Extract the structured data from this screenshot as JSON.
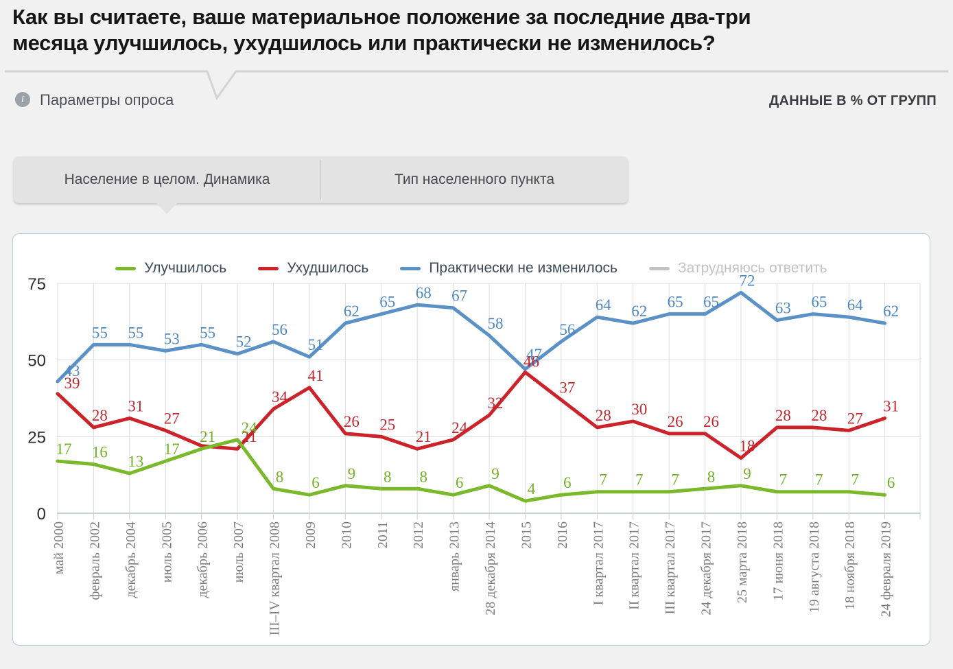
{
  "header": {
    "title_lines": [
      "Как вы считаете, ваше материальное положение за последние два-три",
      "месяца улучшилось, ухудшилось или практически не изменилось?"
    ],
    "info_icon": "i",
    "params_link": "Параметры опроса",
    "data_note": "ДАННЫЕ В % ОТ ГРУПП"
  },
  "tabs": [
    {
      "label": "Население в целом. Динамика",
      "active": true
    },
    {
      "label": "Тип населенного пункта",
      "active": false
    }
  ],
  "chart_data": {
    "type": "line",
    "title": "",
    "xlabel": "",
    "ylabel": "",
    "ylim": [
      0,
      75
    ],
    "yticks": [
      0,
      25,
      50,
      75
    ],
    "grid": true,
    "legend_position": "top",
    "categories": [
      "май 2000",
      "февраль 2002",
      "декабрь 2004",
      "июль 2005",
      "декабрь 2006",
      "июль 2007",
      "III–IV квартал 2008",
      "2009",
      "2010",
      "2011",
      "2012",
      "январь 2013",
      "28 декабря 2014",
      "2015",
      "2016",
      "I квартал 2017",
      "II квартал 2017",
      "III квартал 2017",
      "24 декабря 2017",
      "25 марта 2018",
      "17 июня 2018",
      "19 августа 2018",
      "18 ноября 2018",
      "24 февраля 2019"
    ],
    "series": [
      {
        "key": "improved",
        "name": "Улучшилось",
        "color": "#7ab82c",
        "label_color": "#70b024",
        "visible": true,
        "values": [
          17,
          16,
          13,
          17,
          21,
          24,
          8,
          6,
          9,
          8,
          8,
          6,
          9,
          4,
          6,
          7,
          7,
          7,
          8,
          9,
          7,
          7,
          7,
          6
        ],
        "labels": [
          "17",
          "16",
          "13",
          "17",
          "21",
          "24",
          "8",
          "6",
          "9",
          "8",
          "8",
          "6",
          "9",
          "4",
          "6",
          "7",
          "7",
          "7",
          "8",
          "9",
          "7",
          "7",
          "7",
          "6"
        ]
      },
      {
        "key": "worsened",
        "name": "Ухудшилось",
        "color": "#cb2329",
        "label_color": "#c3272e",
        "visible": true,
        "values": [
          39,
          28,
          31,
          27,
          22,
          21,
          34,
          41,
          26,
          25,
          21,
          24,
          32,
          46,
          37,
          28,
          30,
          26,
          26,
          18,
          28,
          28,
          27,
          31
        ],
        "labels": [
          "39",
          "28",
          "31",
          "27",
          "",
          "21",
          "34",
          "41",
          "26",
          "25",
          "21",
          "24",
          "32",
          "46",
          "37",
          "28",
          "30",
          "26",
          "26",
          "18",
          "28",
          "28",
          "27",
          "31"
        ]
      },
      {
        "key": "unchanged",
        "name": "Практически не изменилось",
        "color": "#5b91c6",
        "label_color": "#4d87c2",
        "visible": true,
        "values": [
          43,
          55,
          55,
          53,
          55,
          52,
          56,
          51,
          62,
          65,
          68,
          67,
          58,
          47,
          56,
          64,
          62,
          65,
          65,
          72,
          63,
          65,
          64,
          62
        ],
        "labels": [
          "43",
          "55",
          "55",
          "53",
          "55",
          "52",
          "56",
          "51",
          "62",
          "65",
          "68",
          "67",
          "58",
          "47",
          "56",
          "64",
          "62",
          "65",
          "65",
          "72",
          "63",
          "65",
          "64",
          "62"
        ]
      },
      {
        "key": "undecided",
        "name": "Затрудняюсь ответить",
        "color": "#c3c3c3",
        "label_color": "#c3c3c3",
        "visible": false,
        "values": [],
        "labels": []
      }
    ],
    "draw_order": [
      2,
      1,
      0
    ],
    "label_nudges": {
      "2-0": [
        12,
        2
      ],
      "1-0": [
        12,
        2
      ],
      "0-5": [
        8,
        0
      ],
      "1-5": [
        8,
        0
      ],
      "2-13": [
        4,
        -4
      ],
      "1-13": [
        0,
        2
      ]
    }
  }
}
